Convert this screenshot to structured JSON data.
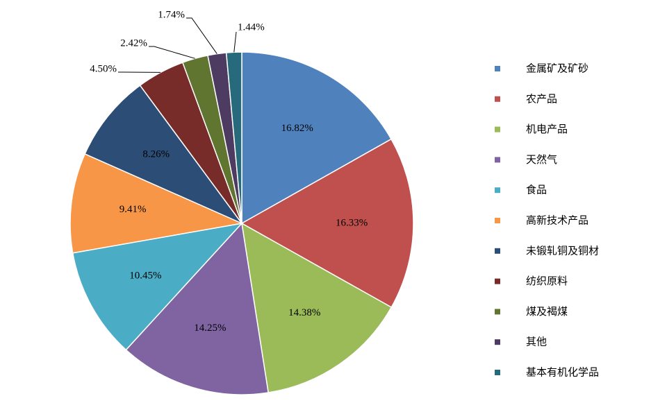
{
  "chart_data": {
    "type": "pie",
    "title": "",
    "legend_position": "right",
    "slices": [
      {
        "label": "金属矿及矿砂",
        "value": 16.82,
        "value_label": "16.82%",
        "color": "#4F81BD"
      },
      {
        "label": "农产品",
        "value": 16.33,
        "value_label": "16.33%",
        "color": "#C0504D"
      },
      {
        "label": "机电产品",
        "value": 14.38,
        "value_label": "14.38%",
        "color": "#9BBB59"
      },
      {
        "label": "天然气",
        "value": 14.25,
        "value_label": "14.25%",
        "color": "#8064A2"
      },
      {
        "label": "食品",
        "value": 10.45,
        "value_label": "10.45%",
        "color": "#4BACC6"
      },
      {
        "label": "高新技术产品",
        "value": 9.41,
        "value_label": "9.41%",
        "color": "#F79646"
      },
      {
        "label": "未锻轧铜及铜材",
        "value": 8.26,
        "value_label": "8.26%",
        "color": "#2C4D75"
      },
      {
        "label": "纺织原料",
        "value": 4.5,
        "value_label": "4.50%",
        "color": "#772C2A"
      },
      {
        "label": "煤及褐煤",
        "value": 2.42,
        "value_label": "2.42%",
        "color": "#5F7530"
      },
      {
        "label": "其他",
        "value": 1.74,
        "value_label": "1.74%",
        "color": "#4D3B62"
      },
      {
        "label": "基本有机化学品",
        "value": 1.44,
        "value_label": "1.44%",
        "color": "#276A7C"
      }
    ]
  }
}
